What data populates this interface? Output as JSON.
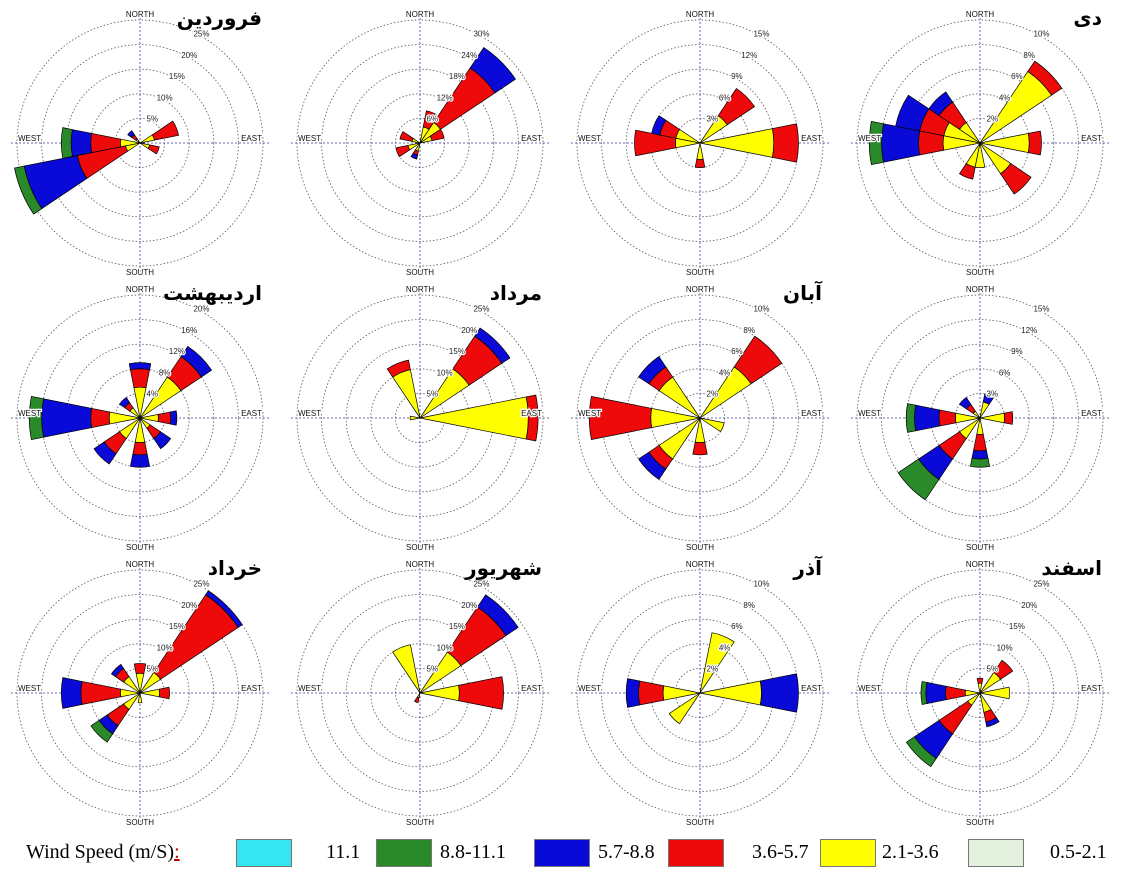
{
  "direction_labels": {
    "north": "NORTH",
    "south": "SOUTH",
    "east": "EAST",
    "west": "WEST"
  },
  "colors": {
    "over_11_1": "#33e6f0",
    "8_8_11_1": "#2a8a2a",
    "5_7_8_8": "#0a0ad8",
    "3_6_5_7": "#ee0a0a",
    "2_1_3_6": "#ffff00",
    "0_5_2_1": "#e3f1de"
  },
  "legend": {
    "title": "Wind Speed (m/S)",
    "colon": ":",
    "items": [
      {
        "label": "11.1",
        "color": "#33e6f0"
      },
      {
        "label": "8.8-11.1",
        "color": "#2a8a2a"
      },
      {
        "label": "5.7-8.8",
        "color": "#0a0ad8"
      },
      {
        "label": "3.6-5.7",
        "color": "#ee0a0a"
      },
      {
        "label": "2.1-3.6",
        "color": "#ffff00"
      },
      {
        "label": "0.5-2.1",
        "color": "#e3f1de"
      }
    ]
  },
  "chart_data": [
    {
      "type": "wind_rose",
      "title": "فروردین",
      "ring_labels": [
        "5%",
        "10%",
        "15%",
        "20%",
        "25%"
      ],
      "rmax": 25,
      "petals": [
        {
          "dir": 67.5,
          "cum": [
            0,
            3,
            8,
            8,
            8
          ]
        },
        {
          "dir": 112.5,
          "cum": [
            0,
            2,
            4,
            4,
            4
          ]
        },
        {
          "dir": 247.5,
          "cum": [
            0,
            3,
            13,
            24,
            26
          ]
        },
        {
          "dir": 270,
          "cum": [
            0,
            4,
            10,
            14,
            16
          ]
        },
        {
          "dir": 315,
          "cum": [
            0,
            1,
            2,
            3,
            3
          ]
        }
      ]
    },
    {
      "type": "wind_rose",
      "title": "",
      "ring_labels": [
        "6%",
        "12%",
        "18%",
        "24%",
        "30%"
      ],
      "rmax": 30,
      "petals": [
        {
          "dir": 22.5,
          "cum": [
            0,
            4,
            8,
            8,
            8
          ]
        },
        {
          "dir": 45,
          "cum": [
            0,
            6,
            22,
            28,
            28
          ]
        },
        {
          "dir": 67.5,
          "cum": [
            0,
            3,
            6,
            6,
            6
          ]
        },
        {
          "dir": 247.5,
          "cum": [
            0,
            3,
            6,
            6,
            6
          ]
        },
        {
          "dir": 292.5,
          "cum": [
            0,
            2,
            5,
            5,
            5
          ]
        },
        {
          "dir": 202.5,
          "cum": [
            0,
            2,
            3,
            4,
            4
          ]
        }
      ]
    },
    {
      "type": "wind_rose",
      "title": "",
      "ring_labels": [
        "3%",
        "6%",
        "9%",
        "12%",
        "15%"
      ],
      "rmax": 15,
      "petals": [
        {
          "dir": 45,
          "cum": [
            0,
            4,
            8,
            8,
            8
          ]
        },
        {
          "dir": 90,
          "cum": [
            0,
            9,
            12,
            12,
            12
          ]
        },
        {
          "dir": 270,
          "cum": [
            0,
            3,
            8,
            8,
            8
          ]
        },
        {
          "dir": 292.5,
          "cum": [
            0,
            3,
            5,
            6,
            6
          ]
        },
        {
          "dir": 180,
          "cum": [
            0,
            2,
            3,
            3,
            3
          ]
        }
      ]
    },
    {
      "type": "wind_rose",
      "title": "دی",
      "ring_labels": [
        "2%",
        "4%",
        "6%",
        "8%",
        "10%"
      ],
      "rmax": 10,
      "petals": [
        {
          "dir": 45,
          "cum": [
            0,
            7,
            8,
            8,
            8
          ]
        },
        {
          "dir": 90,
          "cum": [
            0,
            4,
            5,
            5,
            5
          ]
        },
        {
          "dir": 135,
          "cum": [
            0,
            3,
            5,
            5,
            5
          ]
        },
        {
          "dir": 292.5,
          "cum": [
            0,
            3,
            5,
            7,
            7
          ]
        },
        {
          "dir": 270,
          "cum": [
            0,
            3,
            5,
            8,
            9
          ]
        },
        {
          "dir": 315,
          "cum": [
            0,
            2,
            4,
            5,
            5
          ]
        },
        {
          "dir": 202.5,
          "cum": [
            0,
            2,
            3,
            3,
            3
          ]
        },
        {
          "dir": 180,
          "cum": [
            0,
            2,
            2,
            2,
            2
          ]
        }
      ]
    },
    {
      "type": "wind_rose",
      "title": "اردیبهشت",
      "ring_labels": [
        "4%",
        "8%",
        "12%",
        "16%",
        "20%"
      ],
      "rmax": 20,
      "petals": [
        {
          "dir": 45,
          "cum": [
            0,
            8,
            12,
            14,
            14
          ]
        },
        {
          "dir": 0,
          "cum": [
            0,
            5,
            8,
            9,
            9
          ]
        },
        {
          "dir": 270,
          "cum": [
            0,
            5,
            8,
            16,
            18
          ]
        },
        {
          "dir": 225,
          "cum": [
            0,
            4,
            7,
            9,
            9
          ]
        },
        {
          "dir": 180,
          "cum": [
            0,
            4,
            6,
            8,
            8
          ]
        },
        {
          "dir": 135,
          "cum": [
            0,
            2,
            4,
            6,
            6
          ]
        },
        {
          "dir": 90,
          "cum": [
            0,
            3,
            5,
            6,
            6
          ]
        },
        {
          "dir": 315,
          "cum": [
            0,
            2,
            3,
            4,
            4
          ]
        }
      ]
    },
    {
      "type": "wind_rose",
      "title": "مرداد",
      "ring_labels": [
        "5%",
        "10%",
        "15%",
        "20%",
        "25%"
      ],
      "rmax": 25,
      "petals": [
        {
          "dir": 45,
          "cum": [
            0,
            12,
            20,
            22,
            22
          ]
        },
        {
          "dir": 90,
          "cum": [
            0,
            22,
            24,
            24,
            24
          ]
        },
        {
          "dir": 337.5,
          "cum": [
            0,
            10,
            12,
            12,
            12
          ]
        },
        {
          "dir": 270,
          "cum": [
            0,
            2,
            2,
            2,
            2
          ]
        }
      ]
    },
    {
      "type": "wind_rose",
      "title": "آبان",
      "ring_labels": [
        "2%",
        "4%",
        "6%",
        "8%",
        "10%"
      ],
      "rmax": 10,
      "petals": [
        {
          "dir": 45,
          "cum": [
            0,
            5,
            8,
            8,
            8
          ]
        },
        {
          "dir": 270,
          "cum": [
            0,
            4,
            9,
            9,
            9
          ]
        },
        {
          "dir": 315,
          "cum": [
            0,
            4,
            5,
            6,
            6
          ]
        },
        {
          "dir": 225,
          "cum": [
            0,
            4,
            5,
            6,
            6
          ]
        },
        {
          "dir": 180,
          "cum": [
            0,
            2,
            3,
            3,
            3
          ]
        },
        {
          "dir": 112.5,
          "cum": [
            0,
            2,
            2,
            2,
            2
          ]
        }
      ]
    },
    {
      "type": "wind_rose",
      "title": "",
      "ring_labels": [
        "3%",
        "6%",
        "9%",
        "12%",
        "15%"
      ],
      "rmax": 15,
      "petals": [
        {
          "dir": 225,
          "cum": [
            0,
            3,
            6,
            9,
            12
          ]
        },
        {
          "dir": 270,
          "cum": [
            0,
            3,
            5,
            8,
            9
          ]
        },
        {
          "dir": 180,
          "cum": [
            0,
            2,
            4,
            5,
            6
          ]
        },
        {
          "dir": 90,
          "cum": [
            0,
            3,
            4,
            4,
            4
          ]
        },
        {
          "dir": 22.5,
          "cum": [
            0,
            2,
            2,
            3,
            3
          ]
        },
        {
          "dir": 315,
          "cum": [
            0,
            1,
            2,
            3,
            3
          ]
        }
      ]
    },
    {
      "type": "wind_rose",
      "title": "خرداد",
      "ring_labels": [
        "5%",
        "10%",
        "15%",
        "20%",
        "25%"
      ],
      "rmax": 25,
      "petals": [
        {
          "dir": 45,
          "cum": [
            0,
            5,
            24,
            25,
            25
          ]
        },
        {
          "dir": 270,
          "cum": [
            0,
            4,
            12,
            16,
            16
          ]
        },
        {
          "dir": 225,
          "cum": [
            0,
            4,
            8,
            10,
            12
          ]
        },
        {
          "dir": 0,
          "cum": [
            0,
            4,
            6,
            6,
            6
          ]
        },
        {
          "dir": 315,
          "cum": [
            0,
            4,
            6,
            7,
            7
          ]
        },
        {
          "dir": 90,
          "cum": [
            0,
            4,
            6,
            6,
            6
          ]
        },
        {
          "dir": 180,
          "cum": [
            0,
            2,
            2,
            2,
            2
          ]
        }
      ]
    },
    {
      "type": "wind_rose",
      "title": "شهریور",
      "ring_labels": [
        "5%",
        "10%",
        "15%",
        "20%",
        "25%"
      ],
      "rmax": 25,
      "petals": [
        {
          "dir": 45,
          "cum": [
            0,
            10,
            21,
            24,
            24
          ]
        },
        {
          "dir": 90,
          "cum": [
            0,
            8,
            17,
            17,
            17
          ]
        },
        {
          "dir": 337.5,
          "cum": [
            0,
            10,
            10,
            10,
            10
          ]
        },
        {
          "dir": 202.5,
          "cum": [
            0,
            1,
            2,
            2,
            2
          ]
        }
      ]
    },
    {
      "type": "wind_rose",
      "title": "آذر",
      "ring_labels": [
        "2%",
        "4%",
        "6%",
        "8%",
        "10%"
      ],
      "rmax": 10,
      "petals": [
        {
          "dir": 22.5,
          "cum": [
            0,
            5,
            5,
            5,
            5
          ]
        },
        {
          "dir": 90,
          "cum": [
            0,
            5,
            5,
            8,
            8
          ]
        },
        {
          "dir": 270,
          "cum": [
            0,
            3,
            5,
            6,
            6
          ]
        },
        {
          "dir": 225,
          "cum": [
            0,
            3,
            3,
            3,
            3
          ]
        }
      ]
    },
    {
      "type": "wind_rose",
      "title": "اسفند",
      "ring_labels": [
        "5%",
        "10%",
        "15%",
        "20%",
        "25%"
      ],
      "rmax": 25,
      "petals": [
        {
          "dir": 225,
          "cum": [
            0,
            3,
            10,
            16,
            18
          ]
        },
        {
          "dir": 270,
          "cum": [
            0,
            3,
            7,
            11,
            12
          ]
        },
        {
          "dir": 45,
          "cum": [
            0,
            5,
            8,
            8,
            8
          ]
        },
        {
          "dir": 90,
          "cum": [
            0,
            6,
            6,
            6,
            6
          ]
        },
        {
          "dir": 157.5,
          "cum": [
            0,
            4,
            6,
            7,
            7
          ]
        },
        {
          "dir": 0,
          "cum": [
            0,
            2,
            3,
            3,
            3
          ]
        }
      ]
    }
  ]
}
